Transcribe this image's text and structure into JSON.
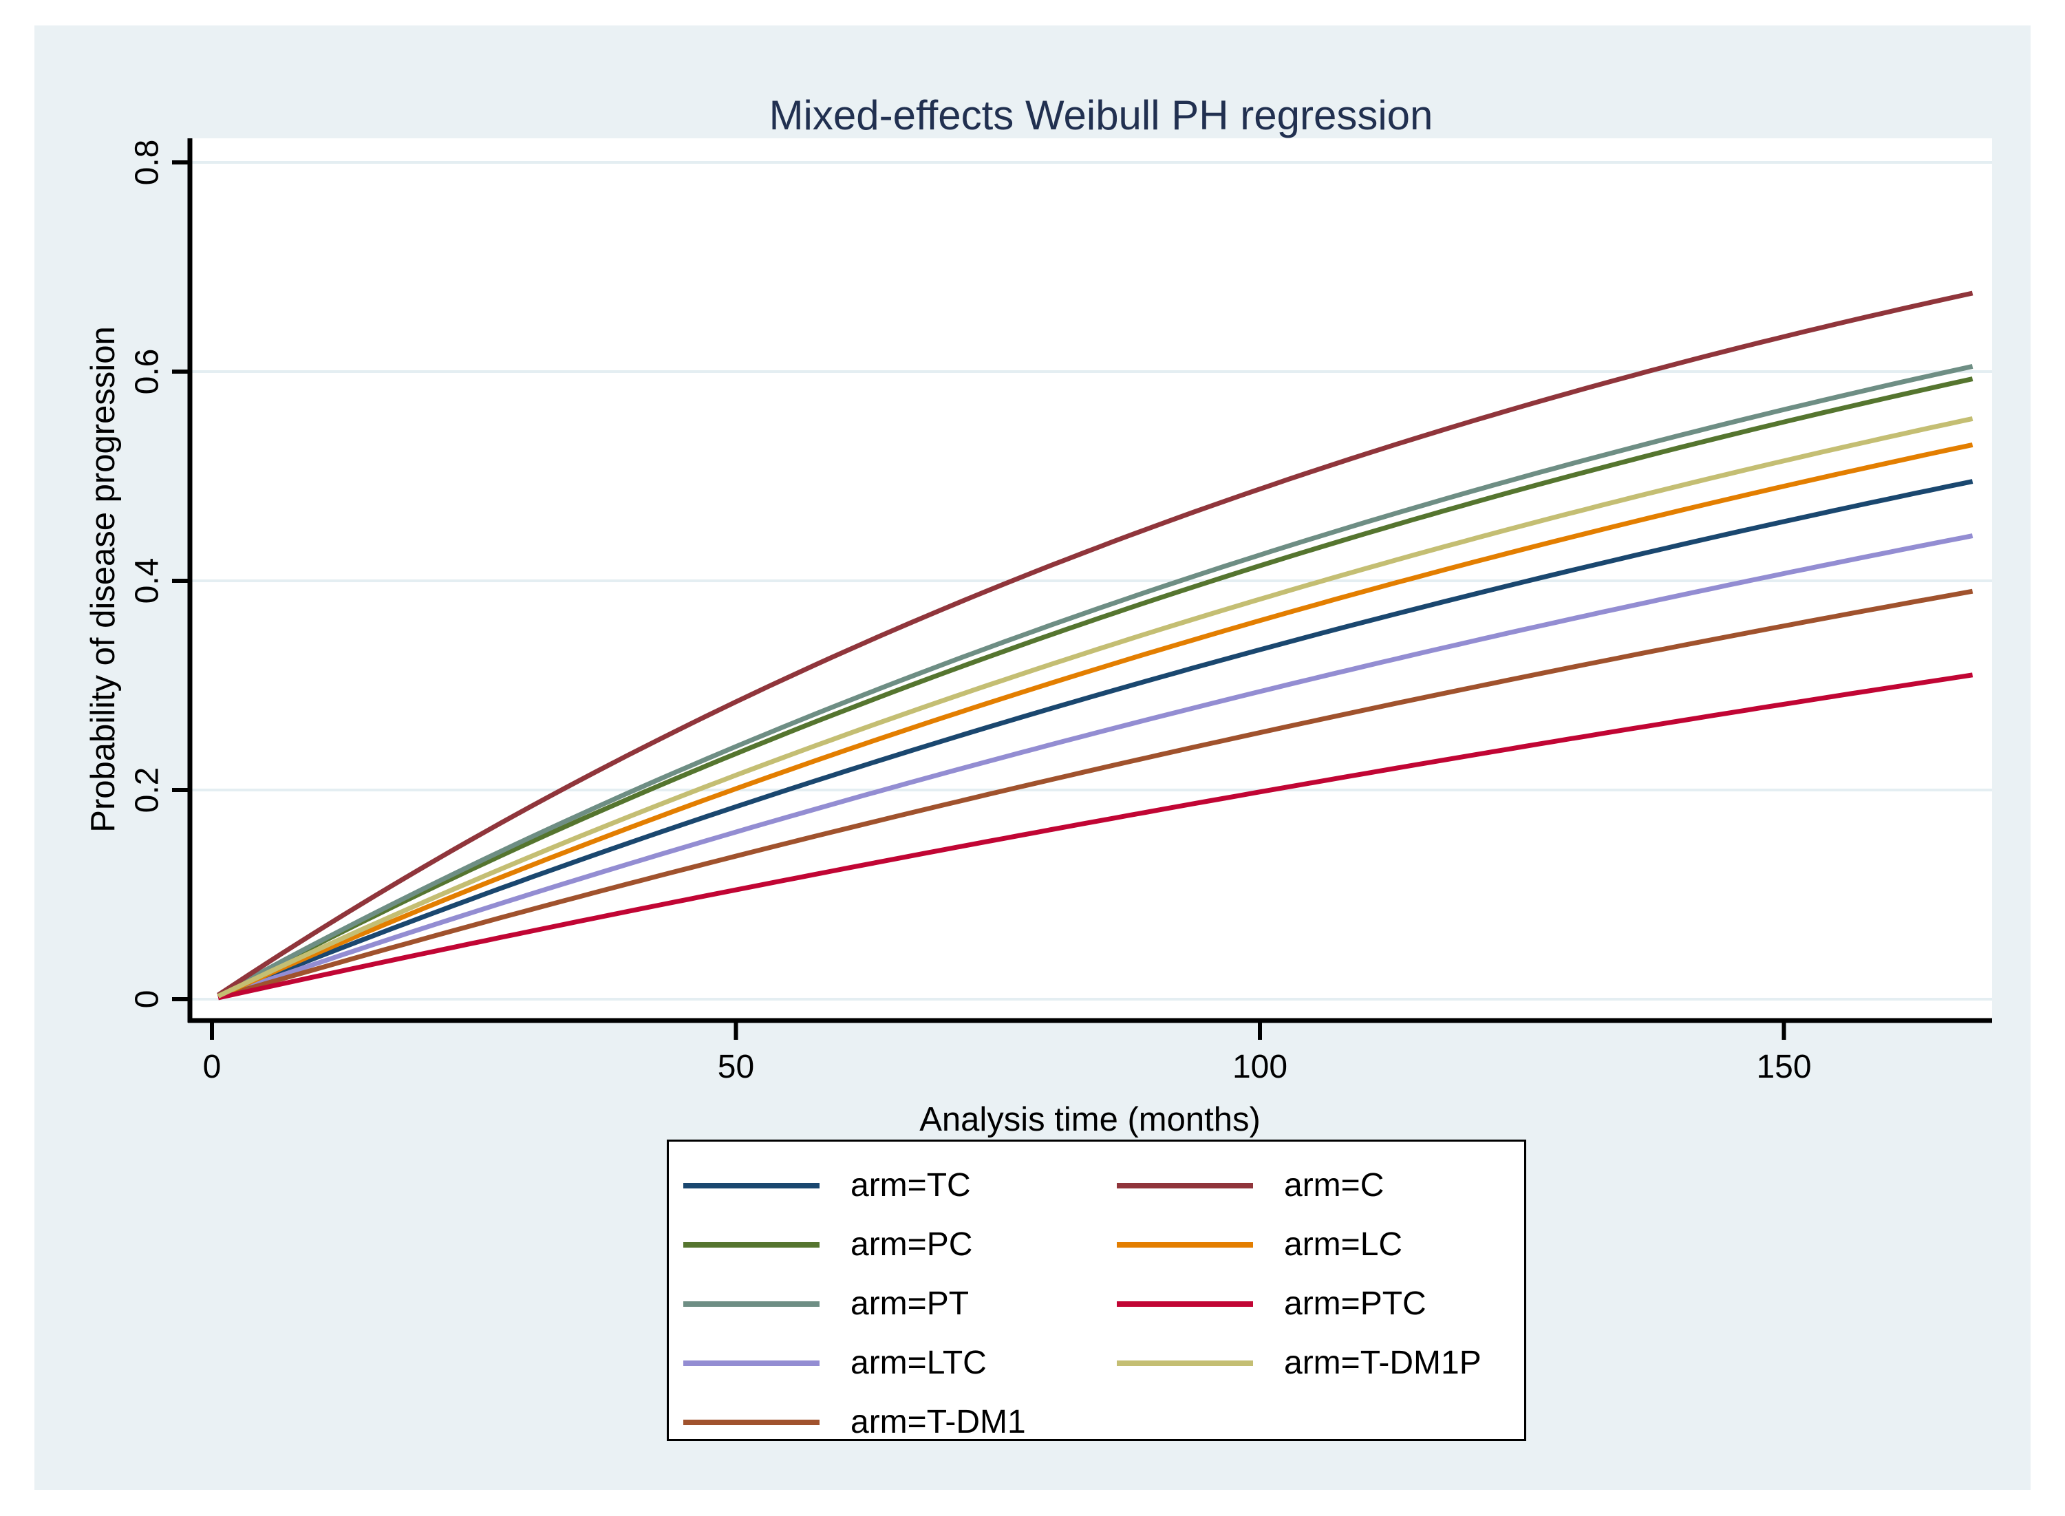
{
  "figure": {
    "background_color": "#EAF1F4",
    "title_color": "#213050",
    "gridline_color": "#E4EEF2",
    "axis_color": "#000000"
  },
  "chart_data": {
    "type": "line",
    "title": "Mixed-effects Weibull PH regression",
    "xlabel": "Analysis time (months)",
    "ylabel": "Probability of disease progression",
    "xlim": [
      0,
      170
    ],
    "ylim": [
      0,
      0.8
    ],
    "grid": "horizontal",
    "legend_position": "bottom",
    "curve_model": "F(t) = 1 - exp(-lambda*t), lambda = -ln(1-p_end)/t_end",
    "t_start": 0.6,
    "t_end": 168,
    "xticks": [
      {
        "value": 0,
        "label": "0"
      },
      {
        "value": 50,
        "label": "50"
      },
      {
        "value": 100,
        "label": "100"
      },
      {
        "value": 150,
        "label": "150"
      }
    ],
    "yticks": [
      {
        "value": 0,
        "label": "0"
      },
      {
        "value": 0.2,
        "label": "0.2"
      },
      {
        "value": 0.4,
        "label": "0.4"
      },
      {
        "value": 0.6,
        "label": "0.6"
      },
      {
        "value": 0.8,
        "label": "0.8"
      }
    ],
    "series": [
      {
        "name": "arm=TC",
        "color": "#1A476F",
        "p_end": 0.495,
        "p_at_50_100_150": [
          0.184,
          0.334,
          0.456
        ]
      },
      {
        "name": "arm=PC",
        "color": "#55752F",
        "p_end": 0.593,
        "p_at_50_100_150": [
          0.235,
          0.414,
          0.552
        ]
      },
      {
        "name": "arm=PT",
        "color": "#6E8E84",
        "p_end": 0.605,
        "p_at_50_100_150": [
          0.242,
          0.425,
          0.564
        ]
      },
      {
        "name": "arm=LTC",
        "color": "#938DD2",
        "p_end": 0.443,
        "p_at_50_100_150": [
          0.16,
          0.294,
          0.407
        ]
      },
      {
        "name": "arm=T-DM1",
        "color": "#A0522D",
        "p_end": 0.39,
        "p_at_50_100_150": [
          0.137,
          0.255,
          0.357
        ]
      },
      {
        "name": "arm=C",
        "color": "#90353B",
        "p_end": 0.675,
        "p_at_50_100_150": [
          0.284,
          0.488,
          0.633
        ]
      },
      {
        "name": "arm=LC",
        "color": "#E37E00",
        "p_end": 0.53,
        "p_at_50_100_150": [
          0.201,
          0.362,
          0.49
        ]
      },
      {
        "name": "arm=PTC",
        "color": "#C10534",
        "p_end": 0.31,
        "p_at_50_100_150": [
          0.105,
          0.198,
          0.282
        ]
      },
      {
        "name": "arm=T-DM1P",
        "color": "#C4BE73",
        "p_end": 0.555,
        "p_at_50_100_150": [
          0.214,
          0.383,
          0.515
        ]
      }
    ],
    "legend_columns": [
      [
        0,
        1,
        2,
        3,
        4
      ],
      [
        5,
        6,
        7,
        8
      ]
    ]
  }
}
